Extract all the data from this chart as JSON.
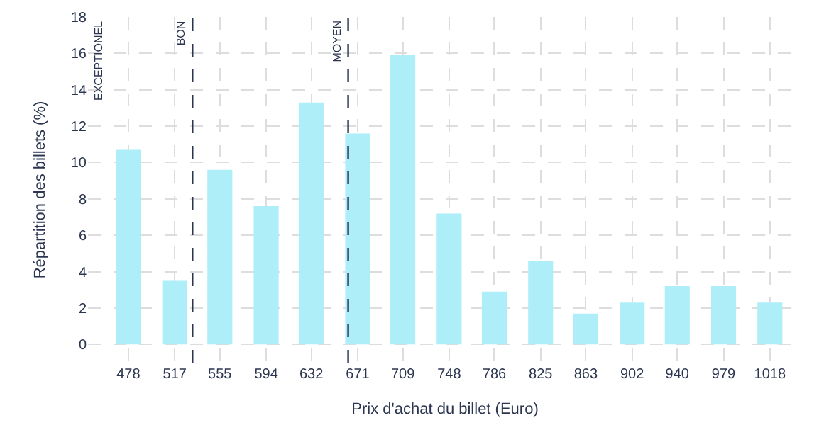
{
  "chart_data": {
    "type": "bar",
    "xlabel": "Prix d'achat du billet (Euro)",
    "ylabel": "Répartition des billets (%)",
    "x": [
      478,
      517,
      555,
      594,
      632,
      671,
      709,
      748,
      786,
      825,
      863,
      902,
      940,
      979,
      1018
    ],
    "values": [
      10.7,
      3.5,
      9.6,
      7.6,
      13.3,
      11.6,
      15.9,
      7.2,
      2.9,
      4.6,
      1.7,
      2.3,
      3.2,
      3.2,
      2.3
    ],
    "color": "#aeeef8",
    "xlim": [
      444,
      1045
    ],
    "xticks": [
      478,
      517,
      555,
      594,
      632,
      671,
      709,
      748,
      786,
      825,
      863,
      902,
      940,
      979,
      1018
    ],
    "ylim": [
      -1,
      18
    ],
    "yticks": [
      0,
      2,
      4,
      6,
      8,
      10,
      12,
      14,
      16,
      18
    ],
    "ref_lines": [
      {
        "axis": "x",
        "value": 532,
        "label": "BON",
        "color": "#2b3550",
        "line_style": "dashed"
      },
      {
        "axis": "x",
        "value": 663,
        "label": "MOYEN",
        "color": "#2b3550",
        "line_style": "dashed"
      }
    ],
    "annotations": [
      "EXCEPTIONEL"
    ],
    "grid": true
  }
}
